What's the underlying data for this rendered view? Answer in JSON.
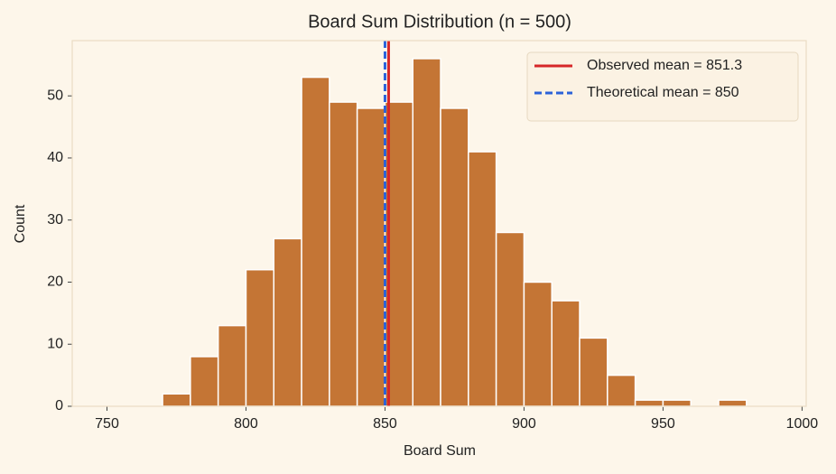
{
  "chart_data": {
    "type": "histogram",
    "title": "Board Sum Distribution (n = 500)",
    "x_label": "Board Sum",
    "y_label": "Count",
    "bins": [
      770,
      780,
      790,
      800,
      810,
      820,
      830,
      840,
      850,
      860,
      870,
      880,
      890,
      900,
      910,
      920,
      930,
      940,
      950,
      960,
      970,
      980
    ],
    "values": [
      2,
      8,
      13,
      22,
      27,
      53,
      49,
      48,
      49,
      56,
      48,
      41,
      28,
      20,
      17,
      11,
      5,
      1,
      1,
      0,
      1
    ],
    "color": "#c47535",
    "xlim": [
      737.5,
      1001.5
    ],
    "xticks": [
      750,
      800,
      850,
      900,
      950,
      1000
    ],
    "ylim": [
      0,
      58.9
    ],
    "yticks": [
      0,
      10,
      20,
      30,
      40,
      50
    ],
    "grid": false,
    "legend": "upper right",
    "reference_lines": [
      {
        "name": "Observed mean = 851.3",
        "value": 851.3,
        "color": "#d62728",
        "style": "solid"
      },
      {
        "name": "Theoretical mean = 850",
        "value": 850,
        "color": "#2b62d9",
        "style": "dashed"
      }
    ]
  }
}
